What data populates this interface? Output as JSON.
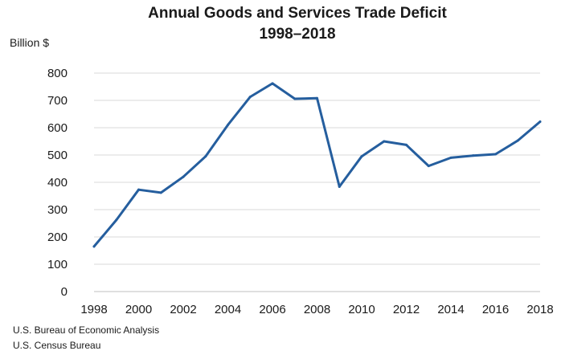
{
  "chart_data": {
    "type": "line",
    "title": "Annual Goods and Services Trade Deficit",
    "subtitle": "1998–2018",
    "ylabel": "Billion $",
    "xlabel": "",
    "ylim": [
      0,
      800
    ],
    "yticks": [
      0,
      100,
      200,
      300,
      400,
      500,
      600,
      700,
      800
    ],
    "xlim": [
      1998,
      2018
    ],
    "xticks": [
      1998,
      2000,
      2002,
      2004,
      2006,
      2008,
      2010,
      2012,
      2014,
      2016,
      2018
    ],
    "grid": true,
    "legend": "none",
    "x": [
      1998,
      1999,
      2000,
      2001,
      2002,
      2003,
      2004,
      2005,
      2006,
      2007,
      2008,
      2009,
      2010,
      2011,
      2012,
      2013,
      2014,
      2015,
      2016,
      2017,
      2018
    ],
    "series": [
      {
        "values": [
          165,
          262,
          373,
          362,
          420,
          495,
          610,
          713,
          762,
          706,
          708,
          384,
          495,
          550,
          537,
          460,
          490,
          498,
          503,
          553,
          622
        ],
        "color": "#255e9e"
      }
    ]
  },
  "source_lines": [
    "U.S. Bureau of Economic Analysis",
    "U.S. Census Bureau"
  ]
}
